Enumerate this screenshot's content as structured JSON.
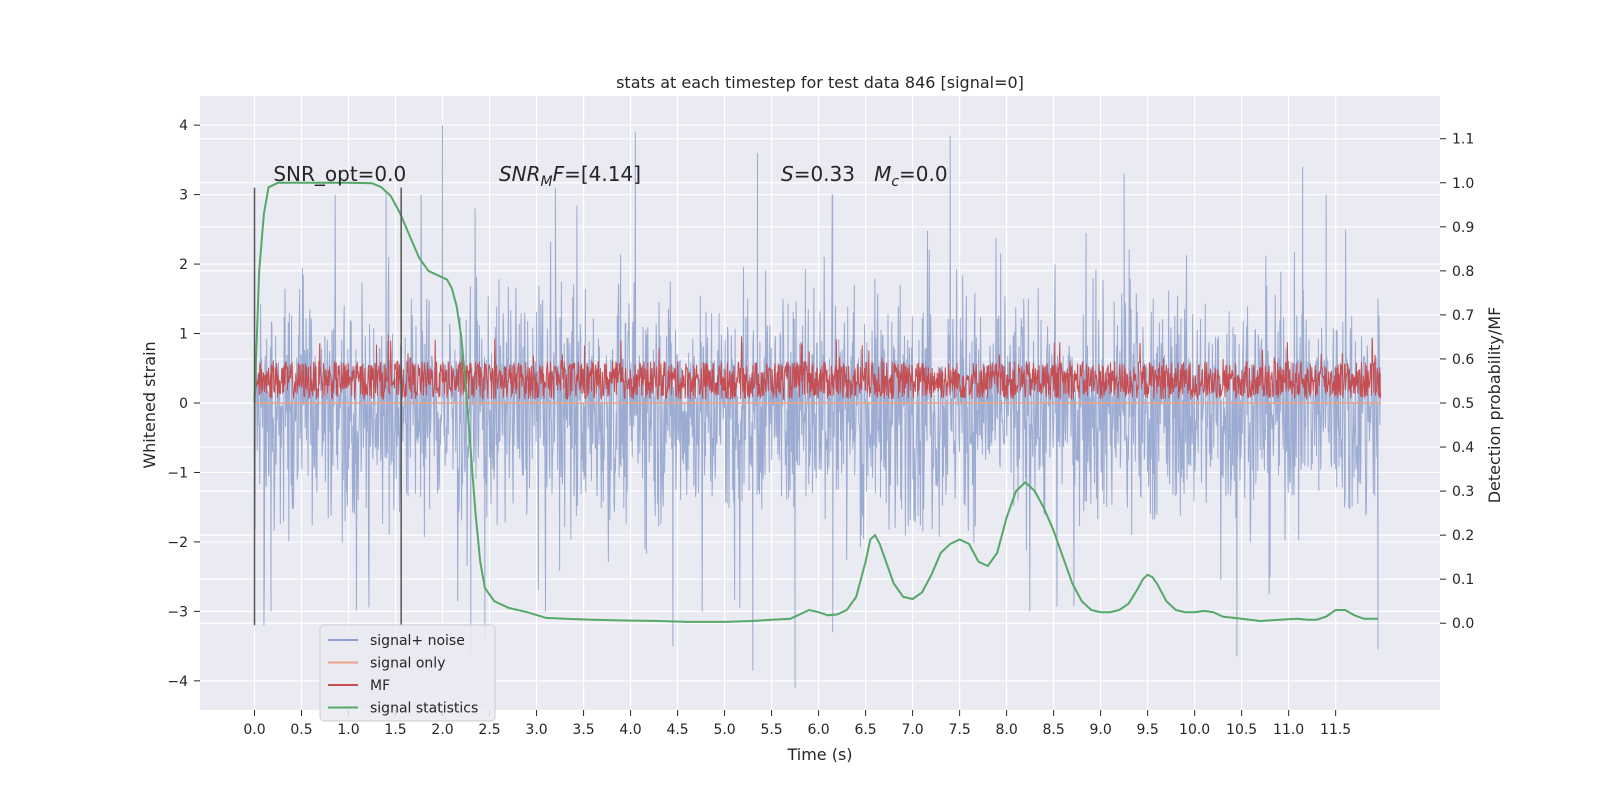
{
  "chart_data": {
    "type": "line",
    "title": "stats at each timestep for test data 846 [signal=0]",
    "xlabel": "Time (s)",
    "ylabel_left": "Whitened strain",
    "ylabel_right": "Detection probability/MF",
    "xlim": [
      -0.58,
      12.61
    ],
    "ylim_left": [
      -4.42,
      4.42
    ],
    "ylim_right": [
      -0.197,
      1.197
    ],
    "grid": true,
    "x_ticks": [
      0.0,
      0.5,
      1.0,
      1.5,
      2.0,
      2.5,
      3.0,
      3.5,
      4.0,
      4.5,
      5.0,
      5.5,
      6.0,
      6.5,
      7.0,
      7.5,
      8.0,
      8.5,
      9.0,
      9.5,
      10.0,
      10.5,
      11.0,
      11.5
    ],
    "x_tick_labels": [
      "0.0",
      "0.5",
      "1.0",
      "1.5",
      "2.0",
      "2.5",
      "3.0",
      "3.5",
      "4.0",
      "4.5",
      "5.0",
      "5.5",
      "6.0",
      "6.5",
      "7.0",
      "7.5",
      "8.0",
      "8.5",
      "9.0",
      "9.5",
      "10.0",
      "10.5",
      "11.0",
      "11.5"
    ],
    "y_left_ticks": [
      -4,
      -3,
      -2,
      -1,
      0,
      1,
      2,
      3,
      4
    ],
    "y_left_tick_labels": [
      "−4",
      "−3",
      "−2",
      "−1",
      "0",
      "1",
      "2",
      "3",
      "4"
    ],
    "y_right_ticks": [
      0.0,
      0.1,
      0.2,
      0.3,
      0.4,
      0.5,
      0.6,
      0.7,
      0.8,
      0.9,
      1.0,
      1.1
    ],
    "y_right_tick_labels": [
      "0.0",
      "0.1",
      "0.2",
      "0.3",
      "0.4",
      "0.5",
      "0.6",
      "0.7",
      "0.8",
      "0.9",
      "1.0",
      "1.1"
    ],
    "annotations": [
      {
        "text": "SNR_opt=0.0",
        "x": 0.2,
        "y_right": 1.0
      },
      {
        "text": "SNR_MF=[4.14]",
        "x": 2.6,
        "y_right": 1.0
      },
      {
        "text": "S=0.33   M_c=0.0",
        "x": 5.6,
        "y_right": 1.0
      }
    ],
    "vertical_lines": [
      {
        "x": 0.0,
        "y_range": [
          -3.2,
          3.1
        ]
      },
      {
        "x": 1.56,
        "y_range": [
          -3.2,
          3.1
        ]
      }
    ],
    "legend": {
      "placement": "lower-left",
      "entries": [
        {
          "label": "signal+ noise",
          "color": "#8da0cb"
        },
        {
          "label": "signal only",
          "color": "#e9a487"
        },
        {
          "label": "MF",
          "color": "#c44e52"
        },
        {
          "label": "signal statistics",
          "color": "#55a868"
        }
      ]
    },
    "series": [
      {
        "name": "signal+ noise",
        "axis": "left",
        "color": "#8da0cb",
        "x_range": [
          0.0,
          11.98
        ],
        "typical_band": [
          -1.3,
          1.2
        ],
        "peaks_max": [
          {
            "x": 0.0,
            "y": 2.35
          },
          {
            "x": 1.4,
            "y": 3.05
          },
          {
            "x": 2.0,
            "y": 4.0
          },
          {
            "x": 3.2,
            "y": 3.1
          },
          {
            "x": 4.05,
            "y": 3.9
          },
          {
            "x": 5.35,
            "y": 3.6
          },
          {
            "x": 6.15,
            "y": 3.0
          },
          {
            "x": 7.4,
            "y": 3.85
          },
          {
            "x": 9.25,
            "y": 3.3
          },
          {
            "x": 11.15,
            "y": 3.4
          },
          {
            "x": 11.4,
            "y": 3.0
          }
        ],
        "peaks_min": [
          {
            "x": 0.1,
            "y": -3.2
          },
          {
            "x": 2.3,
            "y": -3.6
          },
          {
            "x": 2.45,
            "y": -3.4
          },
          {
            "x": 4.45,
            "y": -3.5
          },
          {
            "x": 5.3,
            "y": -3.85
          },
          {
            "x": 5.75,
            "y": -4.1
          },
          {
            "x": 6.15,
            "y": -3.3
          },
          {
            "x": 10.45,
            "y": -3.65
          },
          {
            "x": 11.95,
            "y": -3.55
          }
        ]
      },
      {
        "name": "signal only",
        "axis": "left",
        "color": "#e9a487",
        "x": [
          0.0,
          11.98
        ],
        "y": [
          0.0,
          0.0
        ]
      },
      {
        "name": "MF",
        "axis": "left",
        "color": "#c44e52",
        "x_range": [
          0.0,
          11.98
        ],
        "typical_band": [
          0.05,
          0.6
        ],
        "max": 1.0,
        "min": 0.0
      },
      {
        "name": "signal statistics",
        "axis": "right",
        "color": "#55a868",
        "x": [
          0.0,
          0.05,
          0.1,
          0.15,
          0.25,
          0.4,
          0.7,
          1.0,
          1.25,
          1.35,
          1.45,
          1.55,
          1.65,
          1.75,
          1.85,
          1.95,
          2.05,
          2.1,
          2.15,
          2.2,
          2.25,
          2.3,
          2.35,
          2.4,
          2.45,
          2.55,
          2.7,
          2.9,
          3.1,
          3.3,
          3.6,
          4.0,
          4.3,
          4.6,
          5.0,
          5.3,
          5.5,
          5.7,
          5.8,
          5.9,
          6.0,
          6.1,
          6.2,
          6.3,
          6.4,
          6.5,
          6.55,
          6.6,
          6.65,
          6.7,
          6.75,
          6.8,
          6.9,
          7.0,
          7.1,
          7.2,
          7.3,
          7.4,
          7.5,
          7.6,
          7.7,
          7.8,
          7.9,
          8.0,
          8.1,
          8.2,
          8.3,
          8.4,
          8.5,
          8.6,
          8.7,
          8.8,
          8.9,
          9.0,
          9.1,
          9.2,
          9.3,
          9.4,
          9.45,
          9.5,
          9.55,
          9.6,
          9.7,
          9.8,
          9.9,
          10.0,
          10.1,
          10.2,
          10.3,
          10.5,
          10.7,
          10.9,
          11.1,
          11.2,
          11.3,
          11.4,
          11.5,
          11.6,
          11.7,
          11.8,
          11.95
        ],
        "y": [
          0.5,
          0.8,
          0.93,
          0.99,
          1.0,
          1.0,
          1.0,
          1.0,
          0.999,
          0.99,
          0.97,
          0.93,
          0.88,
          0.83,
          0.8,
          0.79,
          0.78,
          0.76,
          0.72,
          0.65,
          0.53,
          0.39,
          0.25,
          0.14,
          0.08,
          0.05,
          0.035,
          0.025,
          0.012,
          0.01,
          0.008,
          0.006,
          0.005,
          0.003,
          0.003,
          0.005,
          0.008,
          0.01,
          0.02,
          0.03,
          0.025,
          0.018,
          0.02,
          0.03,
          0.06,
          0.14,
          0.19,
          0.2,
          0.18,
          0.15,
          0.12,
          0.09,
          0.06,
          0.055,
          0.07,
          0.11,
          0.16,
          0.18,
          0.19,
          0.18,
          0.14,
          0.13,
          0.16,
          0.24,
          0.3,
          0.32,
          0.3,
          0.26,
          0.21,
          0.15,
          0.09,
          0.05,
          0.03,
          0.025,
          0.025,
          0.03,
          0.045,
          0.08,
          0.1,
          0.11,
          0.105,
          0.09,
          0.05,
          0.03,
          0.025,
          0.025,
          0.028,
          0.025,
          0.015,
          0.01,
          0.005,
          0.008,
          0.01,
          0.008,
          0.008,
          0.015,
          0.03,
          0.03,
          0.018,
          0.01,
          0.01
        ]
      }
    ]
  }
}
